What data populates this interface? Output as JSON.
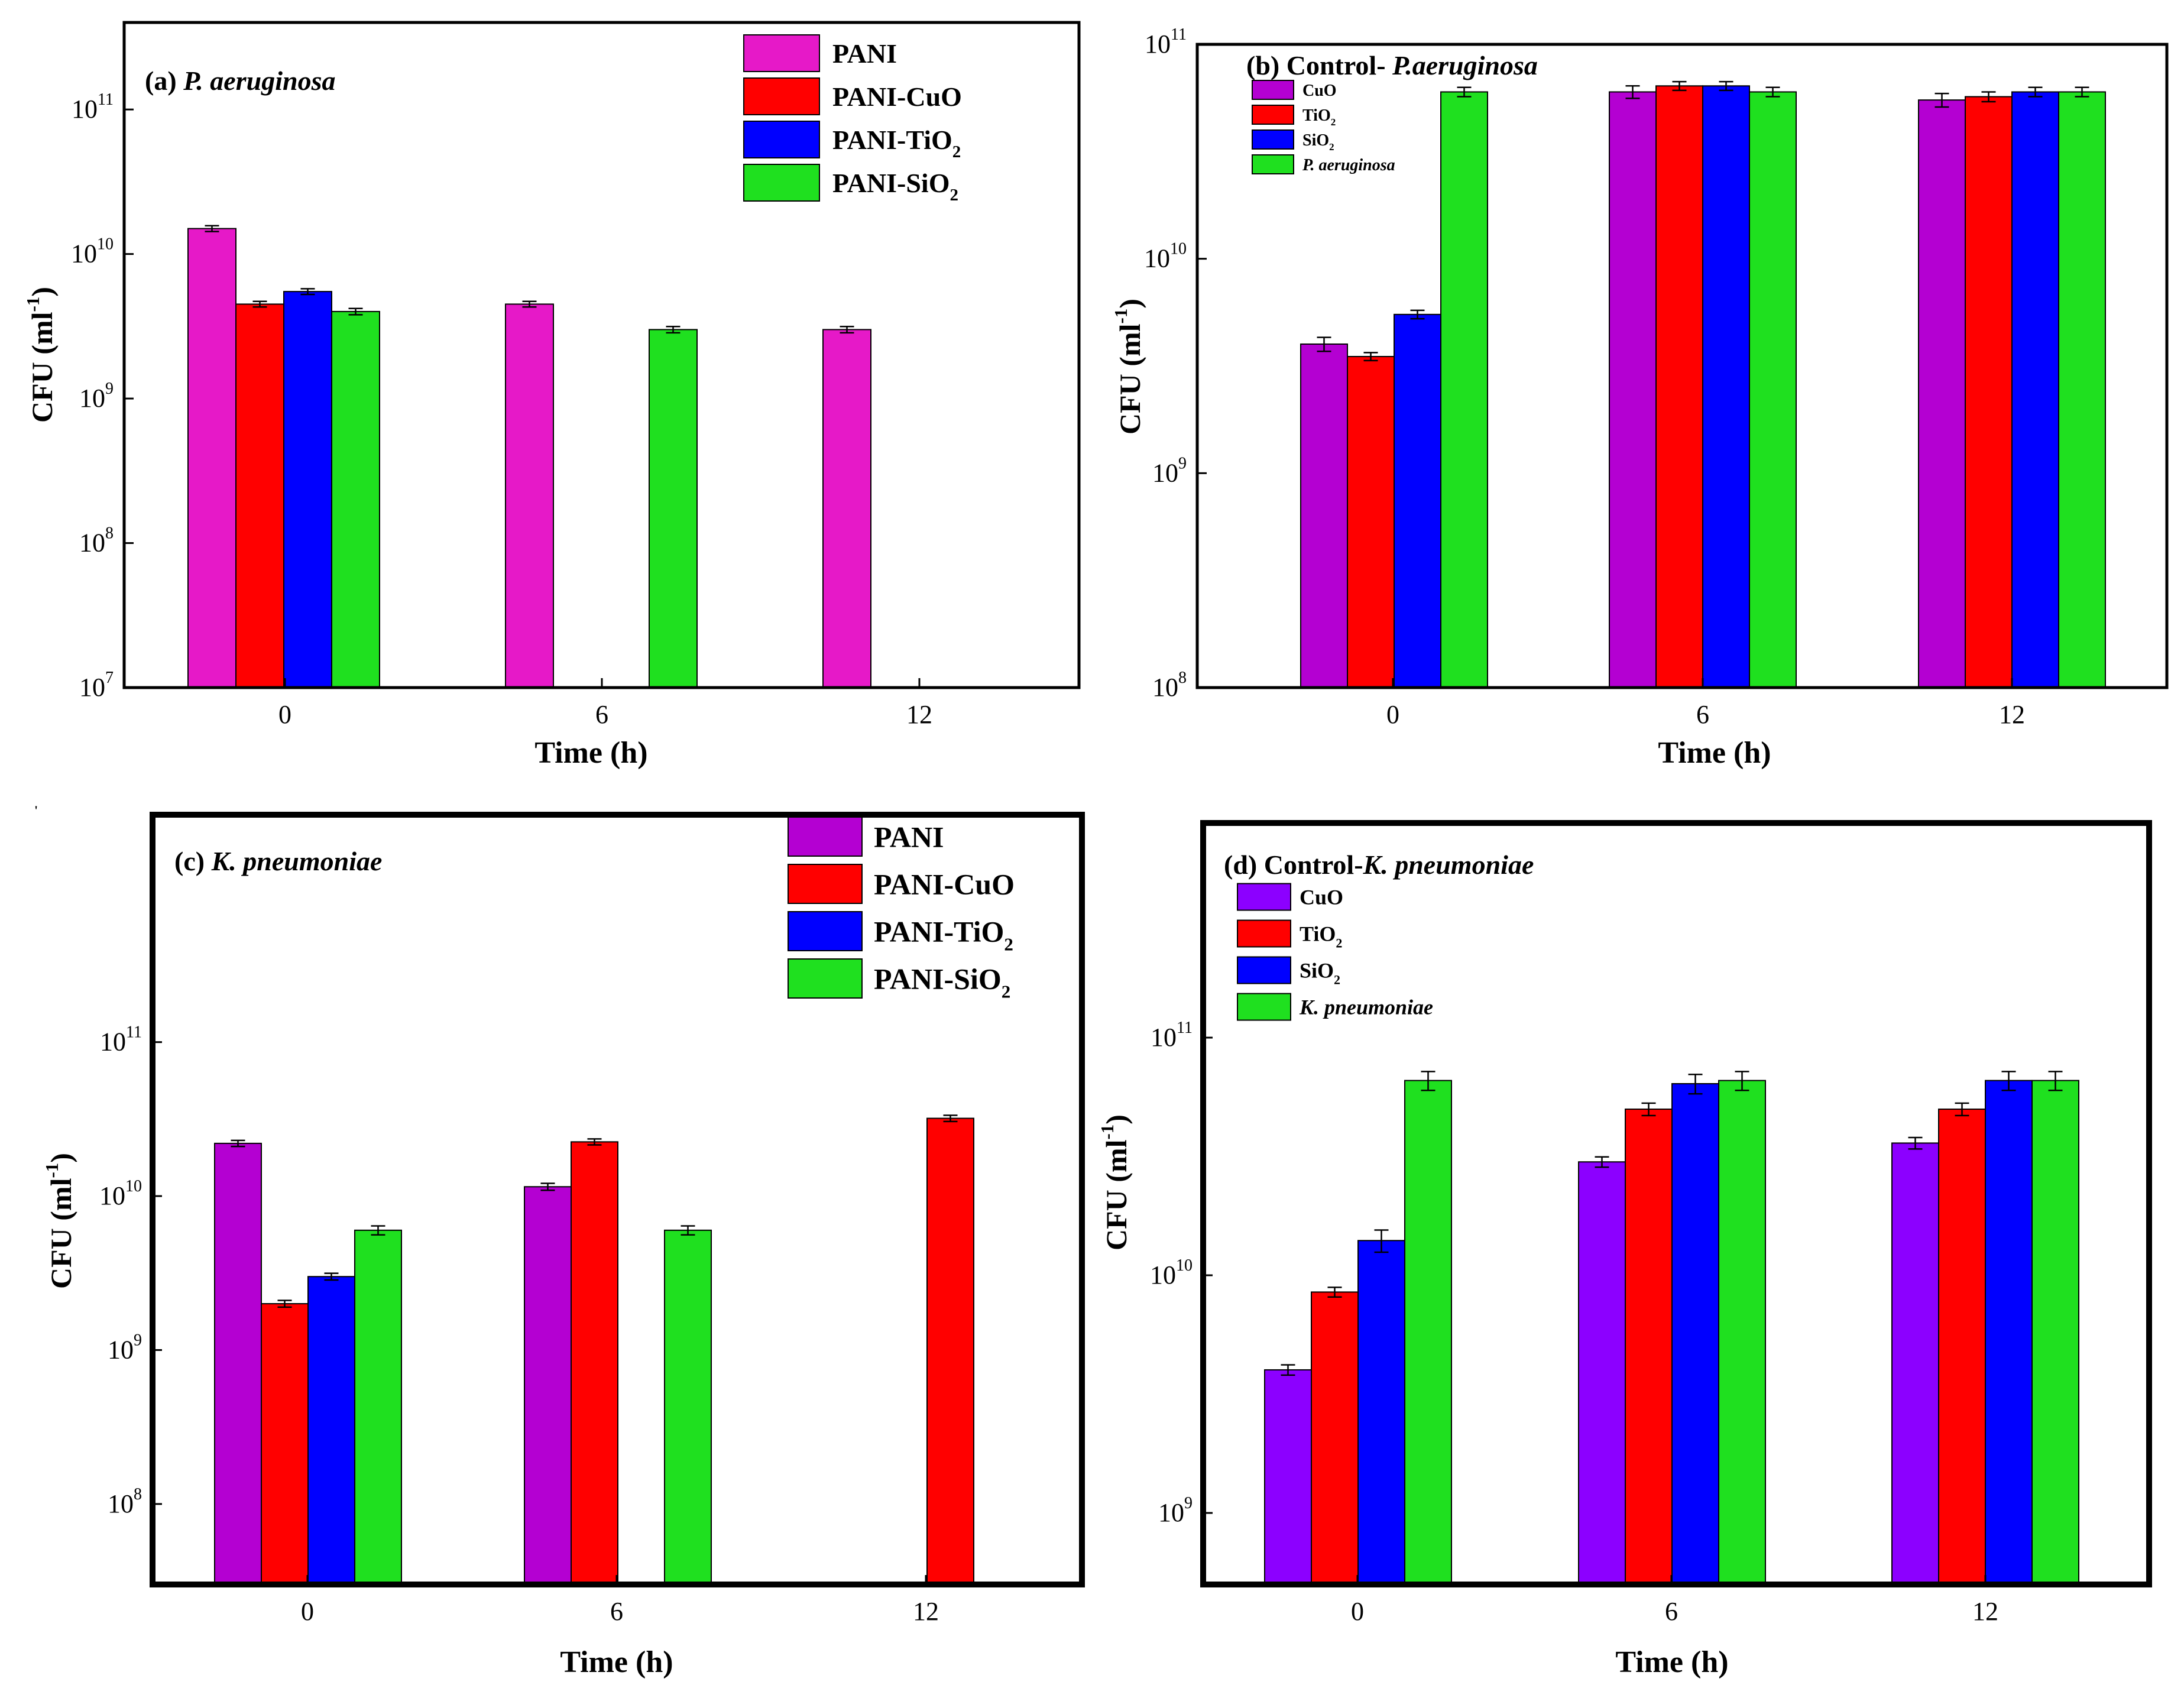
{
  "figure": {
    "stray_mark": "'"
  },
  "colors": {
    "pani": "#e619c8",
    "cuo": "#ff0000",
    "tio2": "#0000ff",
    "sio2": "#1fe01f",
    "b_cuo": "#b400d2",
    "d_cuo": "#8c00ff",
    "axis": "#000000"
  },
  "chart_data": [
    {
      "id": "a",
      "type": "bar",
      "title_prefix": "(a) ",
      "title_italic": "P. aeruginosa",
      "xlabel": "Time (h)",
      "ylabel": "CFU (ml",
      "ylabel_sup": "-1",
      "ylabel_close": ")",
      "categories": [
        "0",
        "6",
        "12"
      ],
      "ylim": [
        10000000,
        400000000000
      ],
      "y_ticks": [
        {
          "b": "10",
          "e": "7"
        },
        {
          "b": "10",
          "e": "8"
        },
        {
          "b": "10",
          "e": "9"
        },
        {
          "b": "10",
          "e": "10"
        },
        {
          "b": "10",
          "e": "11"
        }
      ],
      "series": [
        {
          "name": "PANI",
          "sub": "",
          "italic": false,
          "color": "#e619c8",
          "values": [
            15000000000,
            4500000000,
            3000000000
          ],
          "errors": [
            700000000,
            200000000,
            150000000
          ],
          "slots": [
            0,
            0,
            0
          ]
        },
        {
          "name": "PANI-CuO",
          "sub": "",
          "italic": false,
          "color": "#ff0000",
          "values": [
            4500000000,
            null,
            null
          ],
          "errors": [
            200000000,
            null,
            null
          ],
          "slots": [
            1,
            1,
            1
          ]
        },
        {
          "name": "PANI-TiO",
          "sub": "2",
          "italic": false,
          "color": "#0000ff",
          "values": [
            5500000000,
            null,
            null
          ],
          "errors": [
            250000000,
            null,
            null
          ],
          "slots": [
            2,
            2,
            2
          ]
        },
        {
          "name": "PANI-SiO",
          "sub": "2",
          "italic": false,
          "color": "#1fe01f",
          "values": [
            4000000000,
            3000000000,
            null
          ],
          "errors": [
            200000000,
            150000000,
            null
          ],
          "slots": [
            3,
            3,
            3
          ]
        }
      ]
    },
    {
      "id": "b",
      "type": "bar",
      "title_prefix": "(b) Control- ",
      "title_italic": "P.aeruginosa",
      "xlabel": "Time (h)",
      "ylabel": "CFU (ml",
      "ylabel_sup": "-1",
      "ylabel_close": ")",
      "categories": [
        "0",
        "6",
        "12"
      ],
      "ylim": [
        100000000,
        100000000000
      ],
      "y_ticks": [
        {
          "b": "10",
          "e": "8"
        },
        {
          "b": "10",
          "e": "9"
        },
        {
          "b": "10",
          "e": "10"
        },
        {
          "b": "10",
          "e": "11"
        }
      ],
      "series": [
        {
          "name": "CuO",
          "sub": "",
          "italic": false,
          "color": "#b400d2",
          "values": [
            4000000000,
            60000000000,
            55000000000
          ],
          "errors": [
            300000000,
            4000000000,
            4000000000
          ],
          "slots": [
            0,
            0,
            0
          ]
        },
        {
          "name": "TiO",
          "sub": "2",
          "italic": false,
          "color": "#ff0000",
          "values": [
            3500000000,
            64000000000,
            57000000000
          ],
          "errors": [
            150000000,
            3000000000,
            3000000000
          ],
          "slots": [
            1,
            1,
            1
          ]
        },
        {
          "name": "SiO",
          "sub": "2",
          "italic": false,
          "color": "#0000ff",
          "values": [
            5500000000,
            64000000000,
            60000000000
          ],
          "errors": [
            250000000,
            3000000000,
            3000000000
          ],
          "slots": [
            2,
            2,
            2
          ]
        },
        {
          "name": "P. aeruginosa",
          "sub": "",
          "italic": true,
          "color": "#1fe01f",
          "values": [
            60000000000,
            60000000000,
            60000000000
          ],
          "errors": [
            3000000000,
            3000000000,
            3000000000
          ],
          "slots": [
            3,
            3,
            3
          ]
        }
      ]
    },
    {
      "id": "c",
      "type": "bar",
      "title_prefix": "(c) ",
      "title_italic": "K. pneumoniae",
      "xlabel": "Time (h)",
      "ylabel": "CFU (ml",
      "ylabel_sup": "-1",
      "ylabel_close": ")",
      "categories": [
        "0",
        "6",
        "12"
      ],
      "ylim": [
        30000000,
        3000000000000
      ],
      "y_ticks": [
        {
          "b": "10",
          "e": "8"
        },
        {
          "b": "10",
          "e": "9"
        },
        {
          "b": "10",
          "e": "10"
        },
        {
          "b": "10",
          "e": "11"
        }
      ],
      "series": [
        {
          "name": "PANI",
          "sub": "",
          "italic": false,
          "color": "#b400d2",
          "values": [
            22000000000,
            11500000000,
            null
          ],
          "errors": [
            1000000000,
            600000000,
            null
          ],
          "slots": [
            0,
            0,
            0
          ]
        },
        {
          "name": "PANI-CuO",
          "sub": "",
          "italic": false,
          "color": "#ff0000",
          "values": [
            2000000000,
            22500000000,
            32000000000
          ],
          "errors": [
            100000000,
            1000000000,
            1500000000
          ],
          "slots": [
            1,
            1,
            2
          ]
        },
        {
          "name": "PANI-TiO",
          "sub": "2",
          "italic": false,
          "color": "#0000ff",
          "values": [
            3000000000,
            null,
            null
          ],
          "errors": [
            150000000,
            null,
            null
          ],
          "slots": [
            2,
            2,
            2
          ]
        },
        {
          "name": "PANI-SiO",
          "sub": "2",
          "italic": false,
          "color": "#1fe01f",
          "values": [
            6000000000,
            6000000000,
            null
          ],
          "errors": [
            400000000,
            400000000,
            null
          ],
          "slots": [
            3,
            3,
            3
          ]
        }
      ]
    },
    {
      "id": "d",
      "type": "bar",
      "title_prefix": "(d) Control-",
      "title_italic": "K. pneumoniae",
      "xlabel": "Time (h)",
      "ylabel": "CFU (ml",
      "ylabel_sup": "-1",
      "ylabel_close": ")",
      "categories": [
        "0",
        "6",
        "12"
      ],
      "ylim": [
        500000000,
        800000000000
      ],
      "y_ticks": [
        {
          "b": "10",
          "e": "9"
        },
        {
          "b": "10",
          "e": "10"
        },
        {
          "b": "10",
          "e": "11"
        }
      ],
      "series": [
        {
          "name": "CuO",
          "sub": "",
          "italic": false,
          "color": "#8c00ff",
          "values": [
            4000000000,
            30000000000,
            36000000000
          ],
          "errors": [
            200000000,
            1500000000,
            2000000000
          ],
          "slots": [
            0,
            0,
            0
          ]
        },
        {
          "name": "TiO",
          "sub": "2",
          "italic": false,
          "color": "#ff0000",
          "values": [
            8500000000,
            50000000000,
            50000000000
          ],
          "errors": [
            400000000,
            3000000000,
            3000000000
          ],
          "slots": [
            1,
            1,
            1
          ]
        },
        {
          "name": "SiO",
          "sub": "2",
          "italic": false,
          "color": "#0000ff",
          "values": [
            14000000000,
            64000000000,
            66000000000
          ],
          "errors": [
            1500000000,
            6000000000,
            6000000000
          ],
          "slots": [
            2,
            2,
            2
          ]
        },
        {
          "name": "K. pneumoniae",
          "sub": "",
          "italic": true,
          "color": "#1fe01f",
          "values": [
            66000000000,
            66000000000,
            66000000000
          ],
          "errors": [
            6000000000,
            6000000000,
            6000000000
          ],
          "slots": [
            3,
            3,
            3
          ]
        }
      ]
    }
  ]
}
